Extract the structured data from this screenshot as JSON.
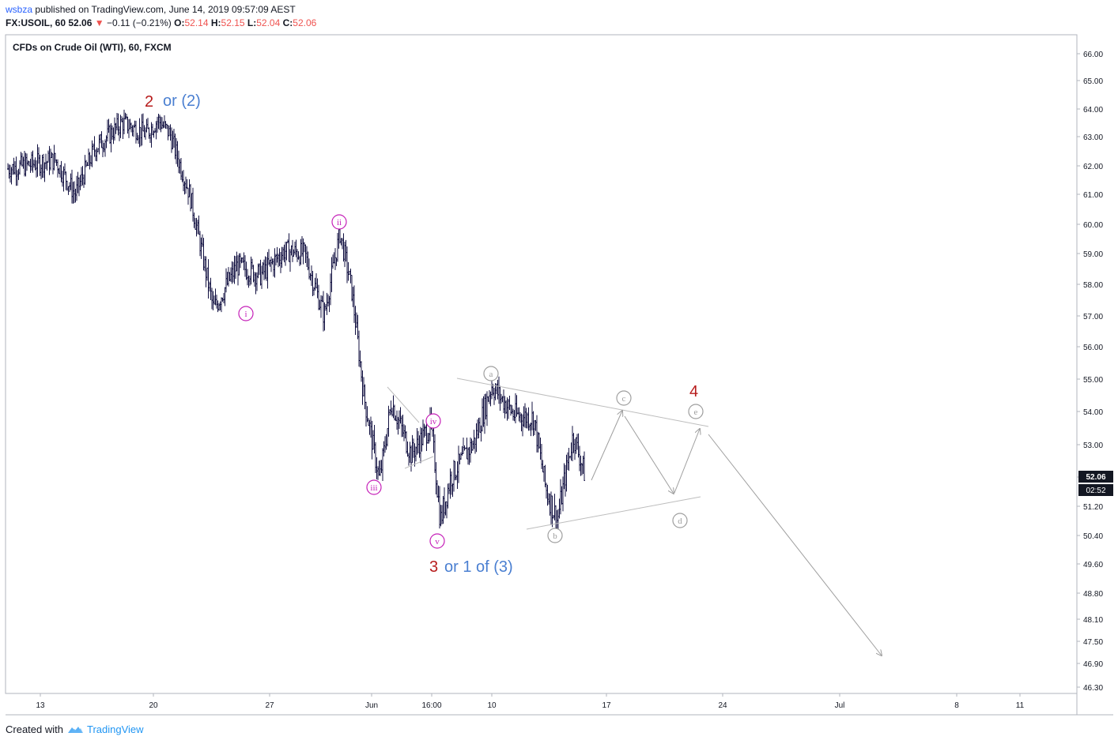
{
  "header": {
    "publisher": "wsbza",
    "published_text": "published on TradingView.com, June 14, 2019 09:57:09 AEST",
    "symbol": "FX:USOIL, 60",
    "price": "52.06",
    "change": "−0.11 (−0.21%)",
    "o_label": "O:",
    "o": "52.14",
    "h_label": "H:",
    "h": "52.15",
    "l_label": "L:",
    "l": "52.04",
    "c_label": "C:",
    "c": "52.06"
  },
  "chart_title": "CFDs on Crude Oil (WTI), 60, FXCM",
  "price_tag": {
    "value": "52.06",
    "countdown": "02:52"
  },
  "footer": {
    "created_with": "Created with",
    "brand": "TradingView"
  },
  "colors": {
    "bars": "#131242",
    "purple": "#c51fb8",
    "red": "#b71c1c",
    "blue": "#4a7fd1",
    "gray": "#9e9e9e",
    "price_tag": "#131722"
  },
  "chart_data": {
    "type": "line",
    "y_axis_ticks": [
      "66.00",
      "65.00",
      "64.00",
      "63.00",
      "62.00",
      "61.00",
      "60.00",
      "59.00",
      "58.00",
      "57.00",
      "56.00",
      "55.00",
      "54.00",
      "53.00",
      "52.00",
      "51.20",
      "50.40",
      "49.60",
      "48.80",
      "48.10",
      "47.50",
      "46.90",
      "46.30"
    ],
    "x_axis_ticks": [
      "13",
      "20",
      "27",
      "Jun",
      "16:00",
      "10",
      "17",
      "24",
      "Jul",
      "8",
      "11"
    ],
    "series": [
      {
        "values": [
          [
            "13",
            61.9
          ],
          [
            "15",
            62.2
          ],
          [
            "16",
            61.0
          ],
          [
            "18",
            62.6
          ],
          [
            "20",
            63.5
          ],
          [
            "21",
            63.1
          ],
          [
            "22",
            63.6
          ],
          [
            "23",
            63.1
          ],
          [
            "24",
            61.0
          ],
          [
            "25",
            57.2
          ],
          [
            "26",
            58.6
          ],
          [
            "27",
            58.3
          ],
          [
            "28",
            59.1
          ],
          [
            "29",
            59.0
          ],
          [
            "30",
            57.0
          ],
          [
            "31",
            59.7
          ],
          [
            "1",
            57.8
          ],
          [
            "2",
            54.5
          ],
          [
            "3",
            51.9
          ],
          [
            "4",
            54.3
          ],
          [
            "5",
            52.7
          ],
          [
            "6",
            53.6
          ],
          [
            "7",
            50.8
          ],
          [
            "8",
            52.0
          ],
          [
            "9",
            53.1
          ],
          [
            "10",
            54.8
          ],
          [
            "11",
            53.9
          ],
          [
            "12",
            53.8
          ],
          [
            "13",
            51.7
          ],
          [
            "14",
            50.8
          ],
          [
            "15",
            53.3
          ],
          [
            "15b",
            52.06
          ]
        ]
      }
    ],
    "wave_labels": {
      "top_red": "2",
      "top_blue": "or (2)",
      "bottom_red": "3",
      "bottom_blue": "or 1 of (3)",
      "triangle_red": "4",
      "minor": [
        "i",
        "ii",
        "iii",
        "iv",
        "v"
      ],
      "triangle": [
        "a",
        "b",
        "c",
        "d",
        "e"
      ]
    }
  }
}
